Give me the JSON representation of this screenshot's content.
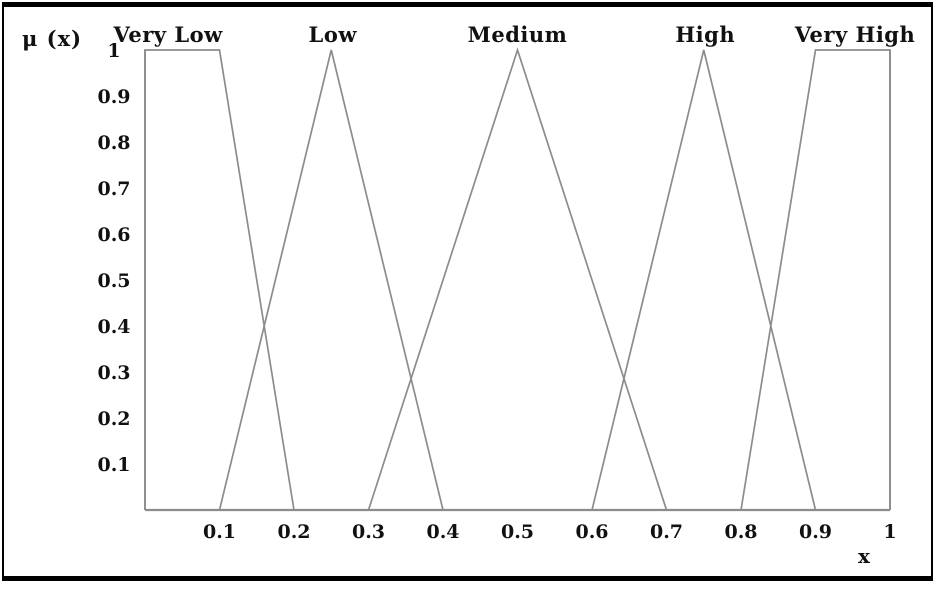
{
  "chart_data": {
    "type": "line",
    "xlabel": "x",
    "ylabel": "μ (x)",
    "xlim": [
      0,
      1
    ],
    "ylim": [
      0,
      1
    ],
    "grid": false,
    "legend": "none",
    "line_color": "#8c8c8c",
    "axis_color": "#8c8c8c",
    "text_color": "#111111",
    "x_ticks": [
      {
        "value": 0.1,
        "label": "0.1"
      },
      {
        "value": 0.2,
        "label": "0.2"
      },
      {
        "value": 0.3,
        "label": "0.3"
      },
      {
        "value": 0.4,
        "label": "0.4"
      },
      {
        "value": 0.5,
        "label": "0.5"
      },
      {
        "value": 0.6,
        "label": "0.6"
      },
      {
        "value": 0.7,
        "label": "0.7"
      },
      {
        "value": 0.8,
        "label": "0.8"
      },
      {
        "value": 0.9,
        "label": "0.9"
      },
      {
        "value": 1,
        "label": "1"
      }
    ],
    "y_ticks": [
      {
        "value": 1,
        "label": "1"
      },
      {
        "value": 0.9,
        "label": "0.9"
      },
      {
        "value": 0.8,
        "label": "0.8"
      },
      {
        "value": 0.7,
        "label": "0.7"
      },
      {
        "value": 0.6,
        "label": "0.6"
      },
      {
        "value": 0.5,
        "label": "0.5"
      },
      {
        "value": 0.4,
        "label": "0.4"
      },
      {
        "value": 0.3,
        "label": "0.3"
      },
      {
        "value": 0.2,
        "label": "0.2"
      },
      {
        "value": 0.1,
        "label": "0.1"
      }
    ],
    "series": [
      {
        "name": "Very Low",
        "shape": "trapezoid",
        "points": [
          [
            0,
            0
          ],
          [
            0,
            1
          ],
          [
            0.1,
            1
          ],
          [
            0.2,
            0
          ]
        ],
        "label_x": 0.031
      },
      {
        "name": "Low",
        "shape": "triangle",
        "points": [
          [
            0.1,
            0
          ],
          [
            0.25,
            1
          ],
          [
            0.4,
            0
          ]
        ],
        "label_x": 0.252
      },
      {
        "name": "Medium",
        "shape": "triangle",
        "points": [
          [
            0.3,
            0
          ],
          [
            0.5,
            1
          ],
          [
            0.7,
            0
          ]
        ],
        "label_x": 0.5
      },
      {
        "name": "High",
        "shape": "triangle",
        "points": [
          [
            0.6,
            0
          ],
          [
            0.75,
            1
          ],
          [
            0.9,
            0
          ]
        ],
        "label_x": 0.752
      },
      {
        "name": "Very High",
        "shape": "trapezoid",
        "points": [
          [
            0.8,
            0
          ],
          [
            0.9,
            1
          ],
          [
            1,
            1
          ],
          [
            1,
            0
          ]
        ],
        "label_x": 0.953
      }
    ]
  }
}
